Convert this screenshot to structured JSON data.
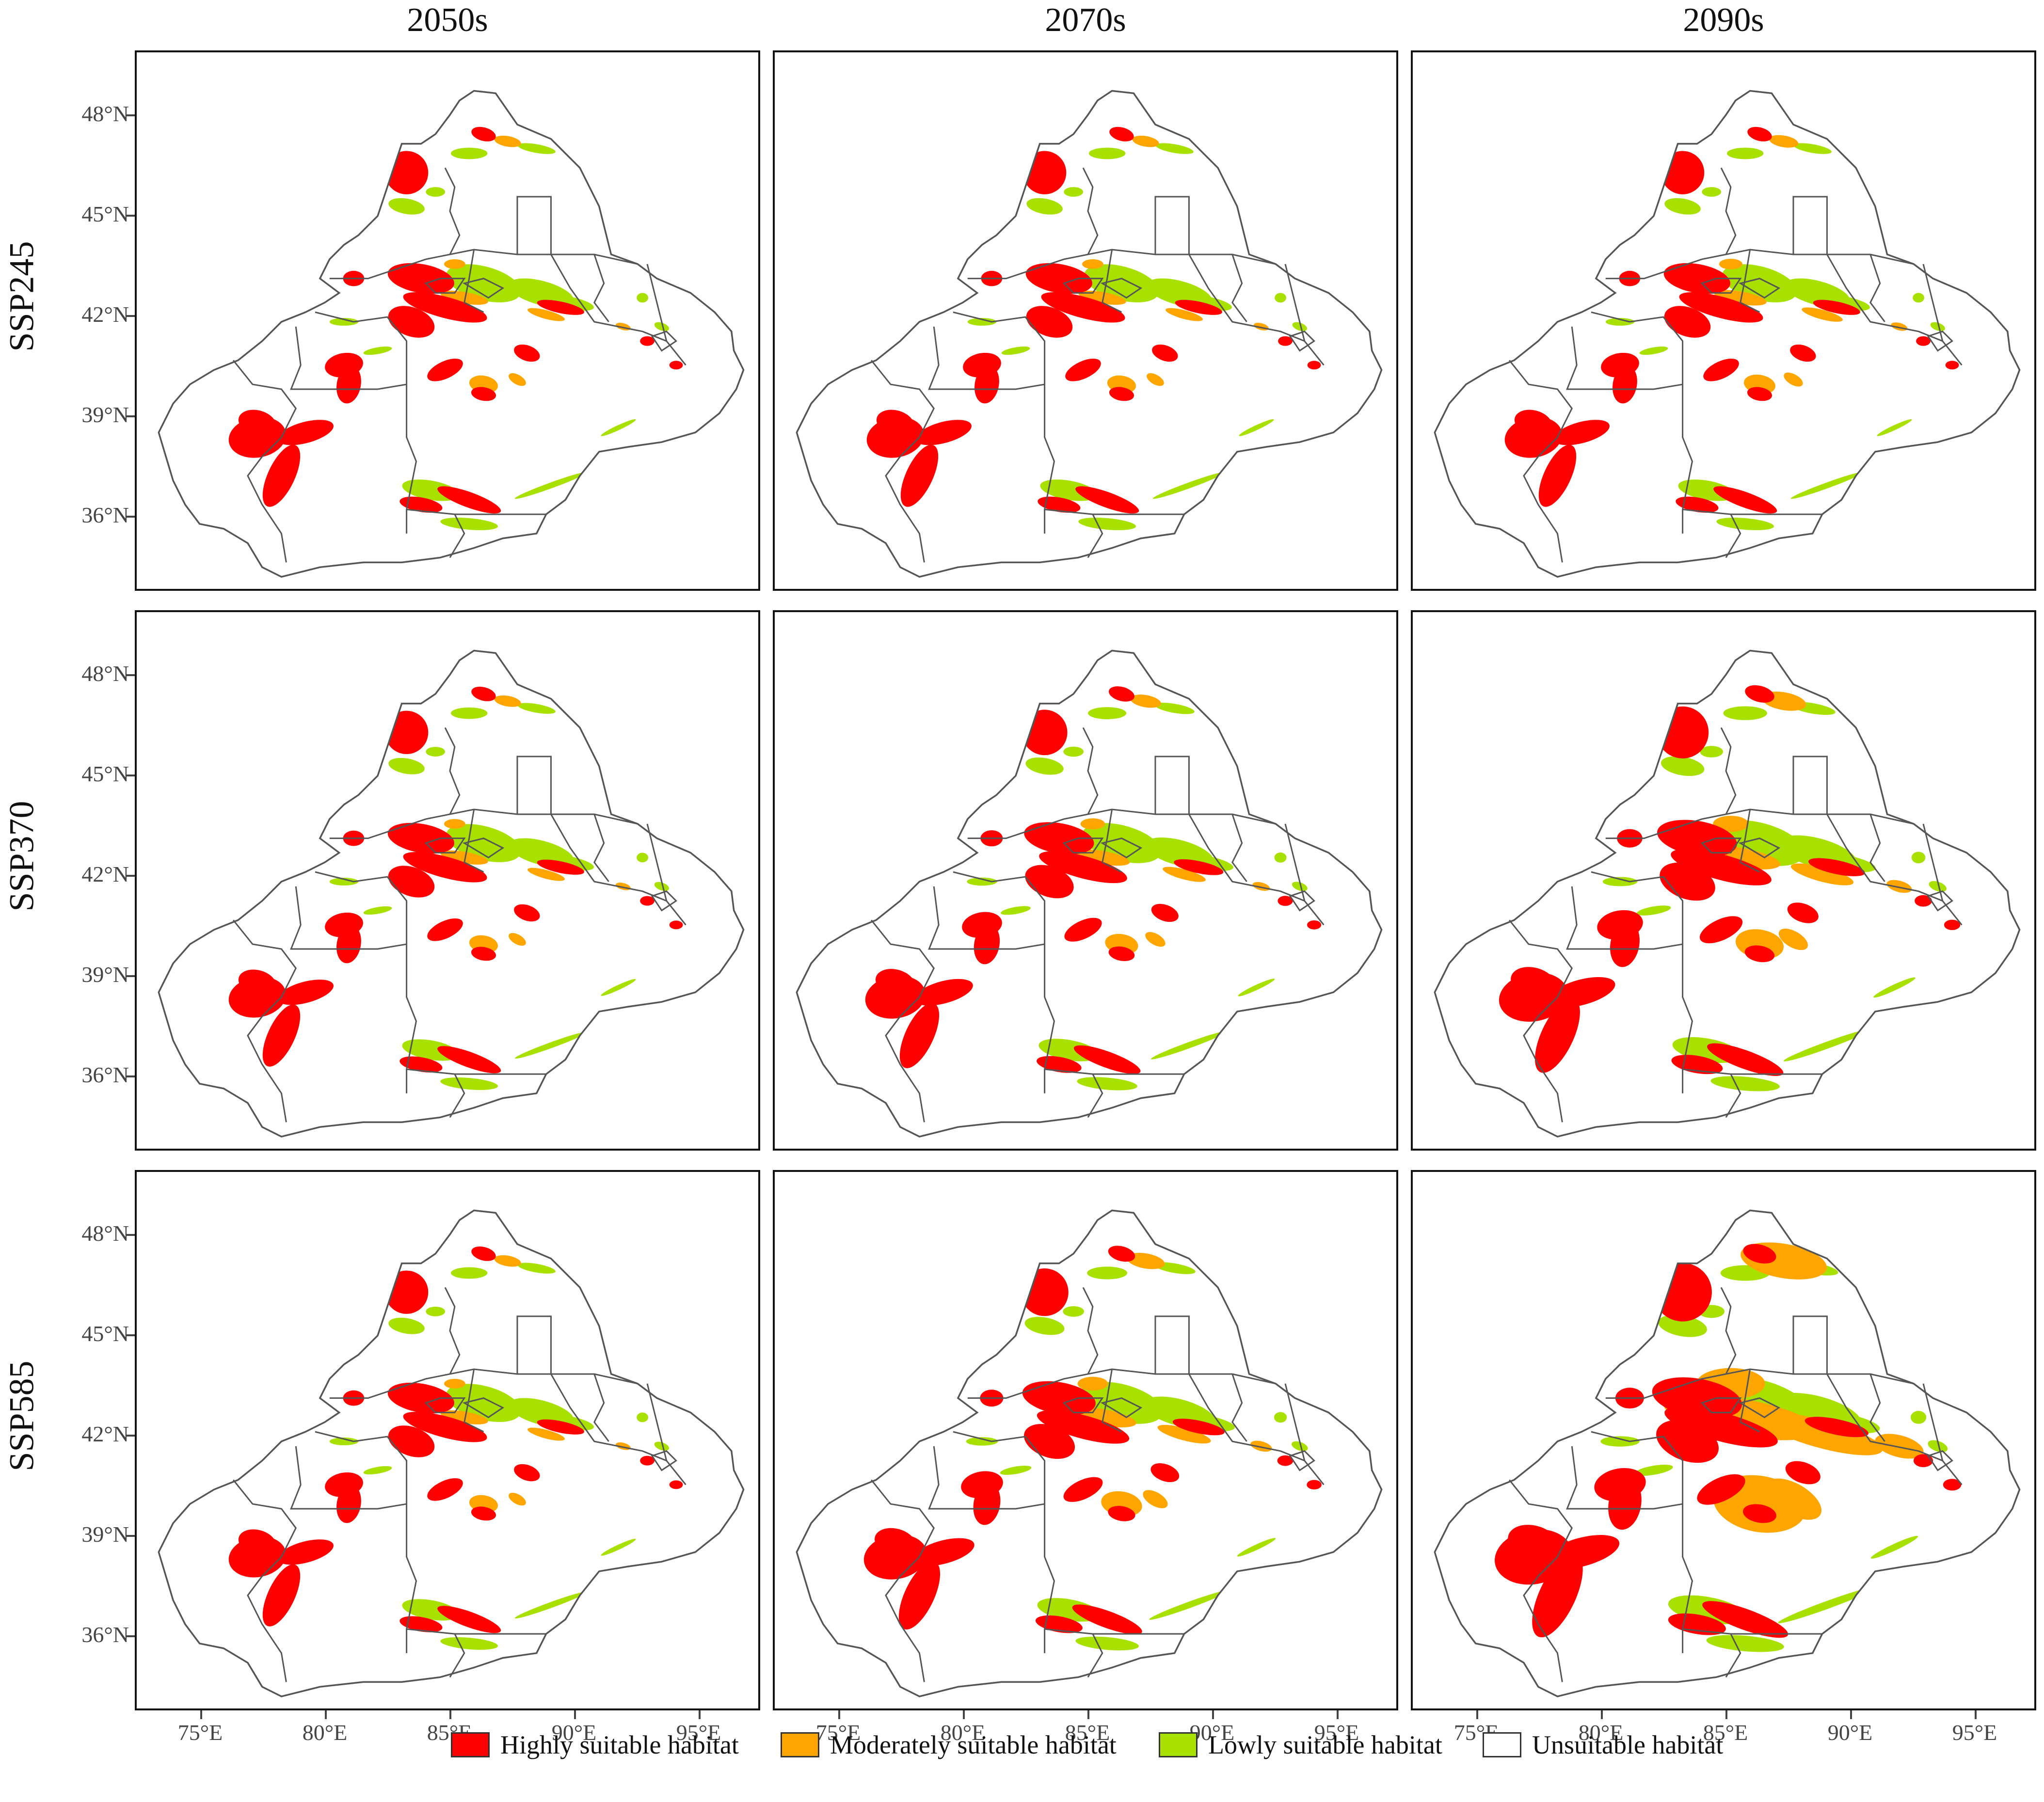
{
  "column_titles": [
    "2050s",
    "2070s",
    "2090s"
  ],
  "row_titles": [
    "SSP245",
    "SSP370",
    "SSP585"
  ],
  "latitude_labels": [
    "48°N",
    "45°N",
    "42°N",
    "39°N",
    "36°N"
  ],
  "longitude_labels": [
    "75°E",
    "80°E",
    "85°E",
    "90°E",
    "95°E"
  ],
  "legend": [
    {
      "label": "Highly suitable habitat",
      "color": "#ff0000"
    },
    {
      "label": "Moderately suitable habitat",
      "color": "#ffa500"
    },
    {
      "label": "Lowly suitable habitat",
      "color": "#a8e000"
    },
    {
      "label": "Unsuitable habitat",
      "color": "#ffffff"
    }
  ],
  "colors": {
    "high": "#ff0000",
    "moderate": "#ffa500",
    "low": "#a8e000",
    "boundary": "#555555",
    "frame": "#111111",
    "axis_text": "#444444"
  }
}
